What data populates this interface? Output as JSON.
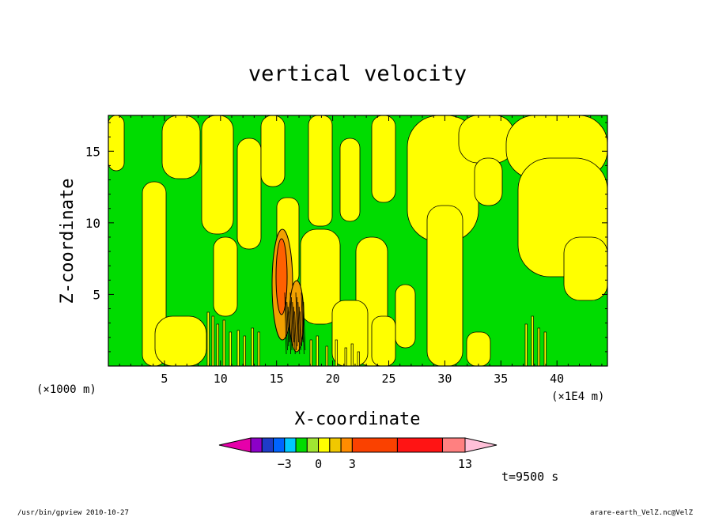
{
  "chart_data": {
    "type": "heatmap",
    "title": "vertical velocity",
    "xlabel": "X-coordinate",
    "ylabel": "Z-coordinate",
    "x_unit": "(×1000 m)",
    "x_unit_alt": "(×1E4 m)",
    "xlim": [
      0,
      44.5
    ],
    "ylim": [
      0,
      17.5
    ],
    "xticks": [
      5,
      10,
      15,
      20,
      25,
      30,
      35,
      40
    ],
    "xtick_labels": [
      "5",
      "10",
      "15",
      "20",
      "25",
      "30",
      "35",
      "40"
    ],
    "yticks": [
      5,
      10,
      15
    ],
    "ytick_labels": [
      "5",
      "10",
      "15"
    ],
    "colorbar": {
      "levels": [
        -6,
        -5,
        -4,
        -3,
        -2,
        -1,
        0,
        1,
        2,
        3,
        7,
        11,
        13
      ],
      "tick_values": [
        -3,
        0,
        3,
        13
      ],
      "tick_labels": [
        "−3",
        "0",
        "3",
        "13"
      ],
      "colors": [
        "#e600aa",
        "#8c00c8",
        "#1e3cc8",
        "#0064ff",
        "#00c8ff",
        "#00dc00",
        "#a0e632",
        "#ffff00",
        "#f0c800",
        "#ff8c00",
        "#fa4100",
        "#ff1414",
        "#ff8080",
        "#ffc0d8"
      ]
    },
    "field_colors": {
      "negative": "#00dc00",
      "positive": "#ffff00",
      "strong_positive": "#f0a000",
      "max_positive": "#ff6000",
      "contour": "#000000"
    },
    "time_label": "t=9500 s"
  },
  "footer": {
    "left": "/usr/bin/gpview  2010-10-27",
    "right": "arare-earth_VelZ.nc@VelZ"
  }
}
